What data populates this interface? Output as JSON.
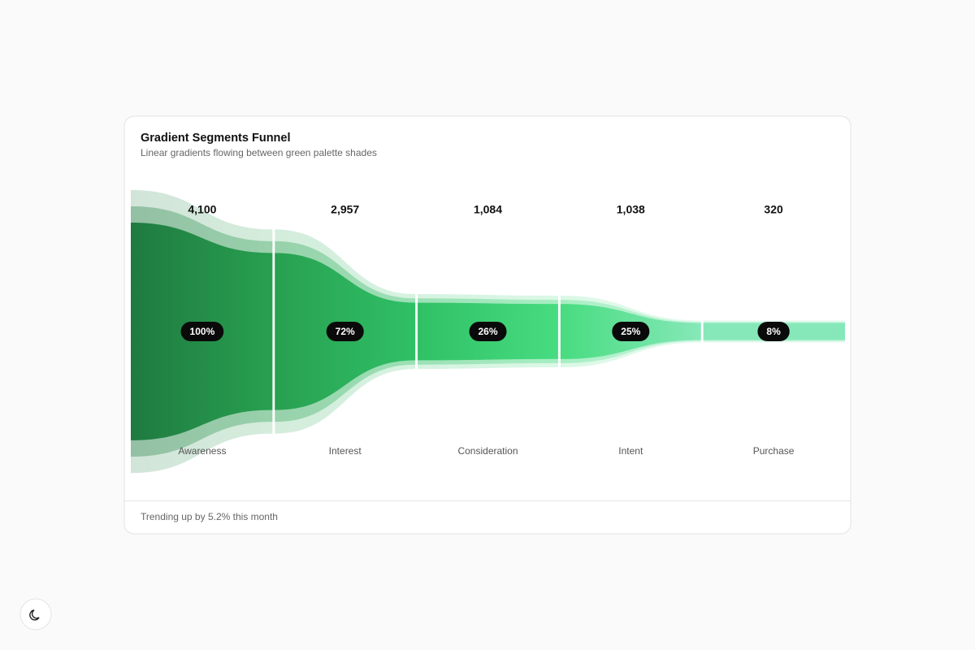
{
  "chart_data": {
    "type": "funnel",
    "title": "Gradient Segments Funnel",
    "subtitle": "Linear gradients flowing between green palette shades",
    "categories": [
      "Awareness",
      "Interest",
      "Consideration",
      "Intent",
      "Purchase"
    ],
    "values": [
      4100,
      2957,
      1084,
      1038,
      320
    ],
    "value_labels": [
      "4,100",
      "2,957",
      "1,084",
      "1,038",
      "320"
    ],
    "shares": [
      100,
      72,
      26,
      25,
      8
    ],
    "share_labels": [
      "100%",
      "72%",
      "26%",
      "25%",
      "8%"
    ],
    "colors": [
      "#1f7a40",
      "#28a050",
      "#30c066",
      "#48dc80",
      "#86e8b8"
    ],
    "footer": "Trending up by 5.2% this month"
  }
}
